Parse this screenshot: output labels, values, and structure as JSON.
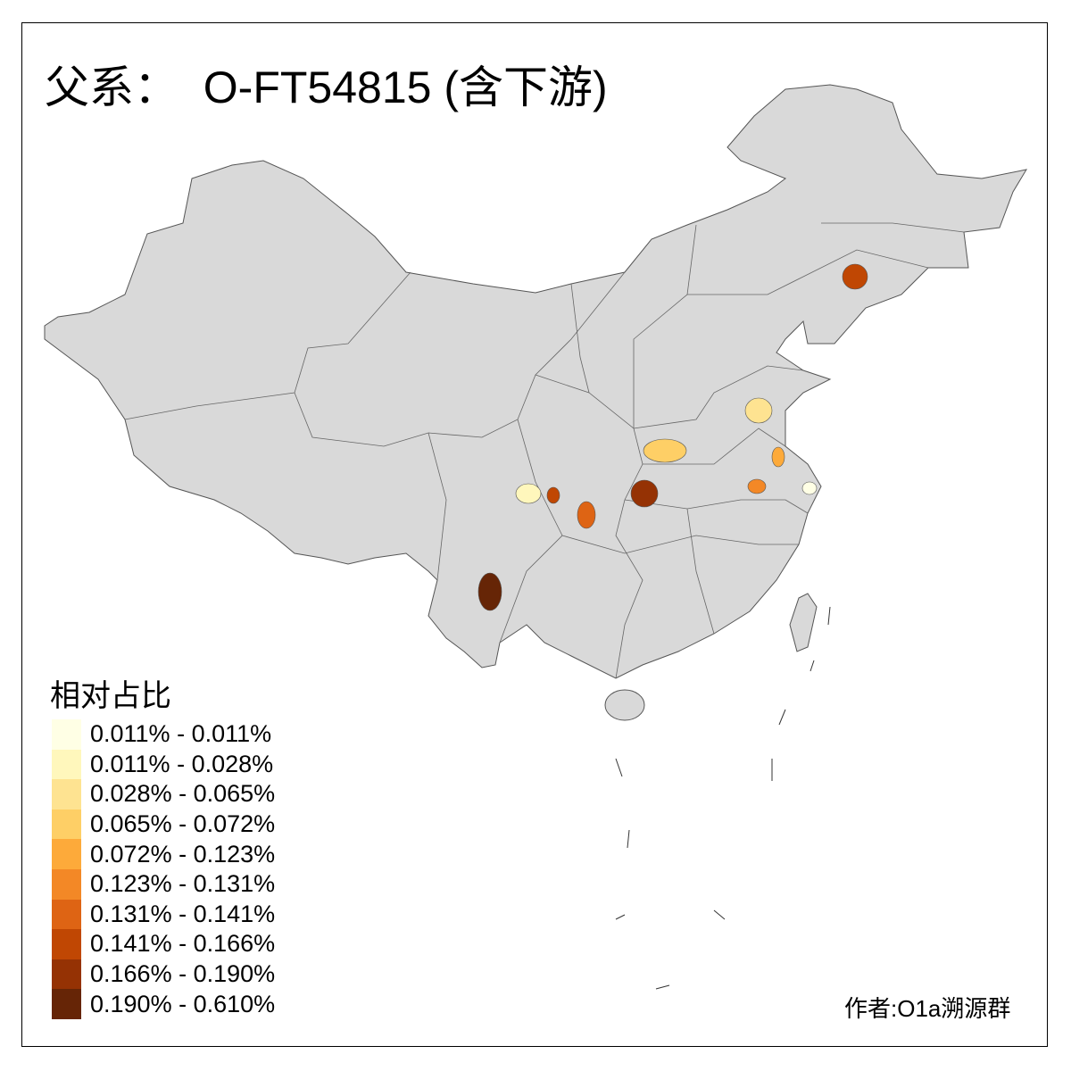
{
  "title": "父系：  O-FT54815 (含下游)",
  "legend": {
    "title": "相对占比",
    "items": [
      {
        "label": "0.011% - 0.011%",
        "color": "#FFFFE5"
      },
      {
        "label": "0.011% - 0.028%",
        "color": "#FFF7BC"
      },
      {
        "label": "0.028% - 0.065%",
        "color": "#FEE391"
      },
      {
        "label": "0.065% - 0.072%",
        "color": "#FECF66"
      },
      {
        "label": "0.072% - 0.123%",
        "color": "#FDAA3A"
      },
      {
        "label": "0.123% - 0.131%",
        "color": "#F38826"
      },
      {
        "label": "0.131% - 0.141%",
        "color": "#DE6414"
      },
      {
        "label": "0.141% - 0.166%",
        "color": "#C04703"
      },
      {
        "label": "0.166% - 0.190%",
        "color": "#953204"
      },
      {
        "label": "0.190% - 0.610%",
        "color": "#662506"
      }
    ]
  },
  "map": {
    "base_fill": "#D9D9D9",
    "border_color": "#555555"
  },
  "credit": "作者:O1a溯源群"
}
